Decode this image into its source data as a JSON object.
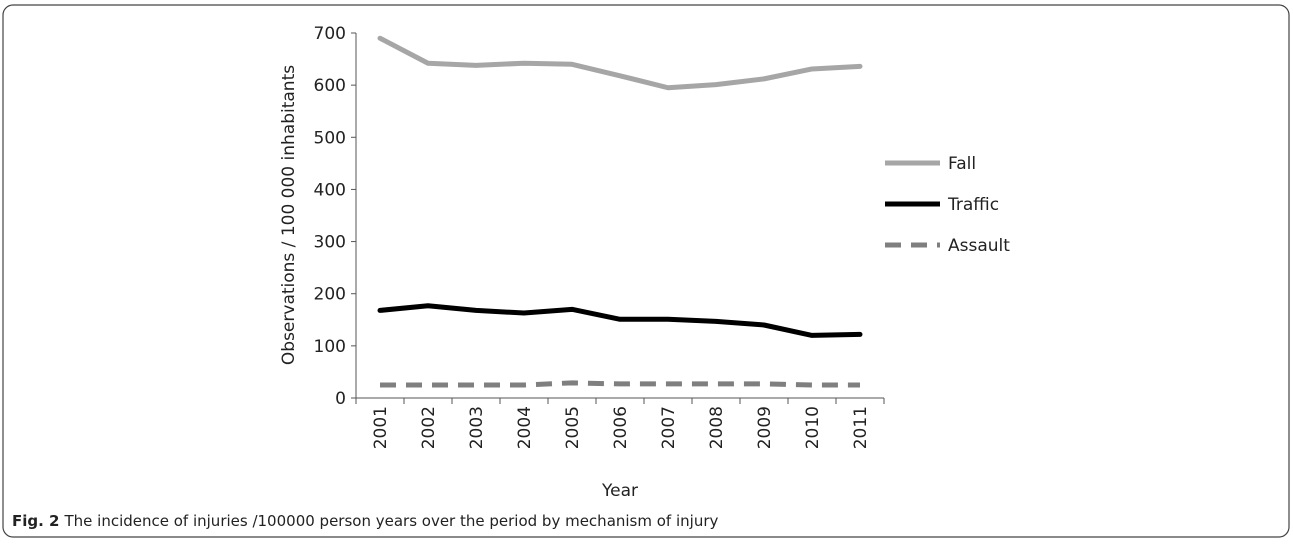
{
  "chart_data": {
    "type": "line",
    "x_label": "Year",
    "y_label": "Observations  / 100 000 inhabitants",
    "caption_label": "Fig. 2",
    "caption_text": "The incidence of injuries /100000 person years over the period by mechanism of injury",
    "categories": [
      "2001",
      "2002",
      "2003",
      "2004",
      "2005",
      "2006",
      "2007",
      "2008",
      "2009",
      "2010",
      "2011"
    ],
    "series": [
      {
        "name": "Fall",
        "color": "#a6a6a6",
        "dashed": false,
        "values": [
          690,
          642,
          638,
          642,
          640,
          618,
          595,
          601,
          612,
          631,
          636
        ]
      },
      {
        "name": "Traffic",
        "color": "#000000",
        "dashed": false,
        "values": [
          168,
          177,
          168,
          163,
          170,
          151,
          151,
          147,
          140,
          120,
          122
        ]
      },
      {
        "name": "Assault",
        "color": "#7f7f7f",
        "dashed": true,
        "values": [
          25,
          25,
          25,
          25,
          29,
          27,
          27,
          27,
          27,
          25,
          25
        ]
      }
    ],
    "ylim": [
      0,
      700
    ],
    "yticks": [
      0,
      100,
      200,
      300,
      400,
      500,
      600,
      700
    ],
    "grid": false,
    "legend_position": "right"
  }
}
